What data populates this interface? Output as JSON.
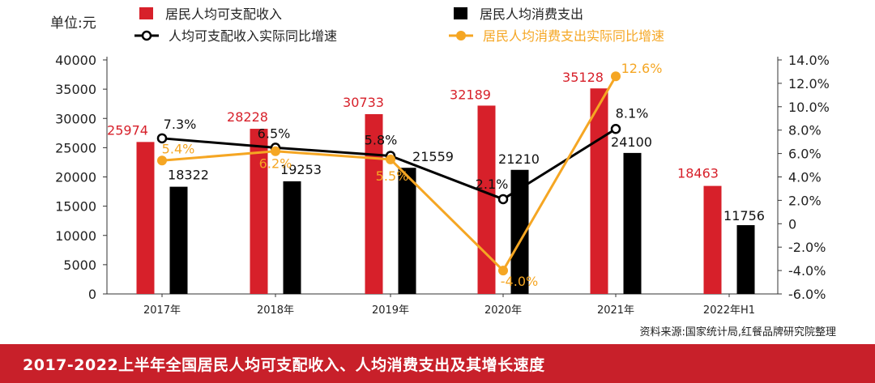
{
  "chart_data": {
    "type": "bar",
    "unit_label": "单位:元",
    "categories": [
      "2017年",
      "2018年",
      "2019年",
      "2020年",
      "2021年",
      "2022年H1"
    ],
    "bar_series": [
      {
        "name": "居民人均可支配收入",
        "color": "#d7202a",
        "label_color": "#d7202a",
        "values": [
          25974,
          28228,
          30733,
          32189,
          35128,
          18463
        ]
      },
      {
        "name": "居民人均消费支出",
        "color": "#000000",
        "label_color": "#111111",
        "values": [
          18322,
          19253,
          21559,
          21210,
          24100,
          11756
        ]
      }
    ],
    "line_series": [
      {
        "name": "人均可支配收入实际同比增速",
        "color": "#000000",
        "label_color": "#111111",
        "values": [
          7.3,
          6.5,
          5.8,
          2.1,
          8.1,
          null
        ],
        "labels": [
          "7.3%",
          "6.5%",
          "5.8%",
          "2.1%",
          "8.1%",
          ""
        ]
      },
      {
        "name": "居民人均消费支出实际同比增速",
        "color": "#f5a623",
        "label_color": "#f5a623",
        "values": [
          5.4,
          6.2,
          5.5,
          -4.0,
          12.6,
          null
        ],
        "labels": [
          "5.4%",
          "6.2%",
          "5.5%",
          "-4.0%",
          "12.6%",
          ""
        ]
      }
    ],
    "y_left": {
      "min": 0,
      "max": 40000,
      "ticks": [
        "0",
        "5000",
        "10000",
        "15000",
        "20000",
        "25000",
        "30000",
        "35000",
        "40000"
      ]
    },
    "y_right": {
      "min": -6,
      "max": 14,
      "ticks": [
        "-6.0%",
        "-4.0%",
        "-2.0%",
        "0",
        "2.0%",
        "4.0%",
        "6.0%",
        "8.0%",
        "10.0%",
        "12.0%",
        "14.0%"
      ]
    },
    "legend_position": "top",
    "grid": false
  },
  "source_text": "资料来源:国家统计局,红餐品牌研究院整理",
  "footer_title": "2017-2022上半年全国居民人均可支配收入、人均消费支出及其增长速度"
}
